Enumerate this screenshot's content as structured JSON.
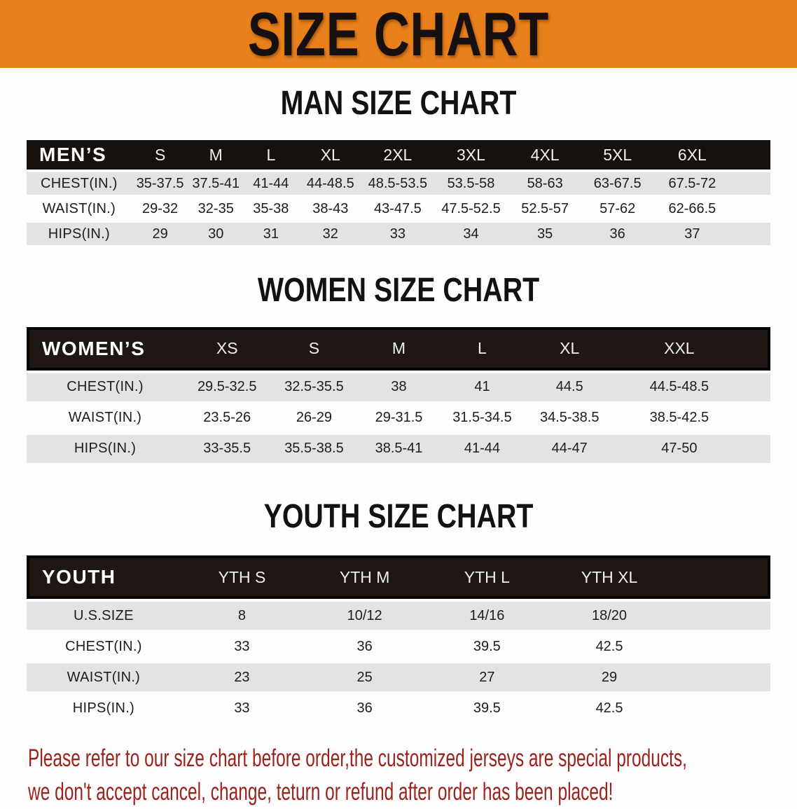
{
  "banner": {
    "title": "SIZE CHART"
  },
  "colors": {
    "banner_bg": "#e8811b",
    "table_header_bg": "#17110e",
    "row_stripe": "#e3e3e3",
    "footer_text": "#9c221c"
  },
  "sections": [
    {
      "id": "men",
      "heading": "MAN SIZE CHART",
      "corner_label": "MEN’S",
      "columns": [
        "S",
        "M",
        "L",
        "XL",
        "2XL",
        "3XL",
        "4XL",
        "5XL",
        "6XL"
      ],
      "rows": [
        {
          "label": "CHEST(IN.)",
          "values": [
            "35-37.5",
            "37.5-41",
            "41-44",
            "44-48.5",
            "48.5-53.5",
            "53.5-58",
            "58-63",
            "63-67.5",
            "67.5-72"
          ]
        },
        {
          "label": "WAIST(IN.)",
          "values": [
            "29-32",
            "32-35",
            "35-38",
            "38-43",
            "43-47.5",
            "47.5-52.5",
            "52.5-57",
            "57-62",
            "62-66.5"
          ]
        },
        {
          "label": "HIPS(IN.)",
          "values": [
            "29",
            "30",
            "31",
            "32",
            "33",
            "34",
            "35",
            "36",
            "37"
          ]
        }
      ]
    },
    {
      "id": "women",
      "heading": "WOMEN SIZE CHART",
      "corner_label": "WOMEN’S",
      "columns": [
        "XS",
        "S",
        "M",
        "L",
        "XL",
        "XXL"
      ],
      "rows": [
        {
          "label": "CHEST(IN.)",
          "values": [
            "29.5-32.5",
            "32.5-35.5",
            "38",
            "41",
            "44.5",
            "44.5-48.5"
          ]
        },
        {
          "label": "WAIST(IN.)",
          "values": [
            "23.5-26",
            "26-29",
            "29-31.5",
            "31.5-34.5",
            "34.5-38.5",
            "38.5-42.5"
          ]
        },
        {
          "label": "HIPS(IN.)",
          "values": [
            "33-35.5",
            "35.5-38.5",
            "38.5-41",
            "41-44",
            "44-47",
            "47-50"
          ]
        }
      ]
    },
    {
      "id": "youth",
      "heading": "YOUTH SIZE CHART",
      "corner_label": "YOUTH",
      "columns": [
        "YTH S",
        "YTH M",
        "YTH L",
        "YTH XL"
      ],
      "rows": [
        {
          "label": "U.S.SIZE",
          "values": [
            "8",
            "10/12",
            "14/16",
            "18/20"
          ]
        },
        {
          "label": "CHEST(IN.)",
          "values": [
            "33",
            "36",
            "39.5",
            "42.5"
          ]
        },
        {
          "label": "WAIST(IN.)",
          "values": [
            "23",
            "25",
            "27",
            "29"
          ]
        },
        {
          "label": "HIPS(IN.)",
          "values": [
            "33",
            "36",
            "39.5",
            "42.5"
          ]
        }
      ]
    }
  ],
  "footer": {
    "line1": "Please refer to our size chart before order,the customized jerseys are special products,",
    "line2": "we don't accept cancel, change, teturn or refund after order has been placed!"
  }
}
